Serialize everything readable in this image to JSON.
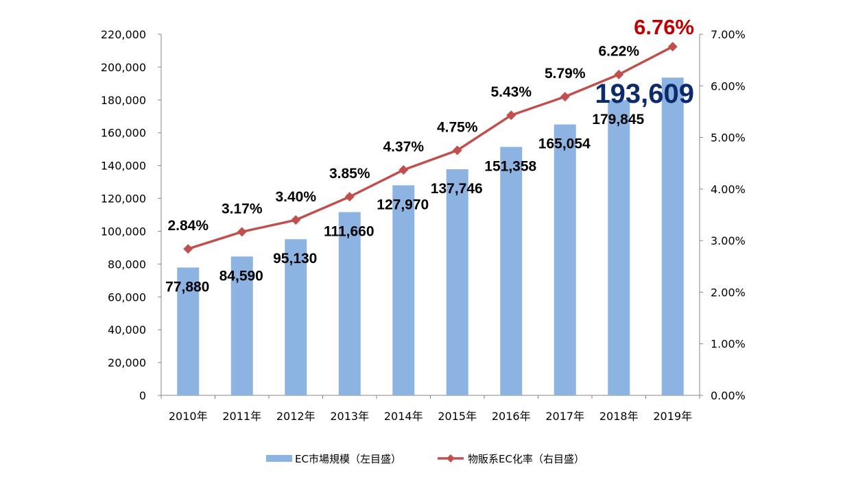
{
  "chart_data": {
    "type": "bar+line",
    "categories": [
      "2010年",
      "2011年",
      "2012年",
      "2013年",
      "2014年",
      "2015年",
      "2016年",
      "2017年",
      "2018年",
      "2019年"
    ],
    "series": [
      {
        "name": "EC市場規模（左目盛）",
        "type": "bar",
        "axis": "left",
        "color": "#8db3e2",
        "values": [
          77880,
          84590,
          95130,
          111660,
          127970,
          137746,
          151358,
          165054,
          179845,
          193609
        ],
        "labels": [
          "77,880",
          "84,590",
          "95,130",
          "111,660",
          "127,970",
          "137,746",
          "151,358",
          "165,054",
          "179,845",
          "193,609"
        ]
      },
      {
        "name": "物販系EC化率（右目盛）",
        "type": "line",
        "axis": "right",
        "color": "#c0504d",
        "values": [
          2.84,
          3.17,
          3.4,
          3.85,
          4.37,
          4.75,
          5.43,
          5.79,
          6.22,
          6.76
        ],
        "labels": [
          "2.84%",
          "3.17%",
          "3.40%",
          "3.85%",
          "4.37%",
          "4.75%",
          "5.43%",
          "5.79%",
          "6.22%",
          "6.76%"
        ]
      }
    ],
    "highlight_colors": {
      "last_bar_label": "#0d2a6b",
      "last_line_label": "#c00000"
    },
    "left_axis": {
      "range": [
        0,
        220000
      ],
      "ticks": [
        "0",
        "20,000",
        "40,000",
        "60,000",
        "80,000",
        "100,000",
        "120,000",
        "140,000",
        "160,000",
        "180,000",
        "200,000",
        "220,000"
      ]
    },
    "right_axis": {
      "range": [
        0,
        7
      ],
      "ticks": [
        "0.00%",
        "1.00%",
        "2.00%",
        "3.00%",
        "4.00%",
        "5.00%",
        "6.00%",
        "7.00%"
      ]
    },
    "grid": false,
    "legend": "bottom"
  }
}
